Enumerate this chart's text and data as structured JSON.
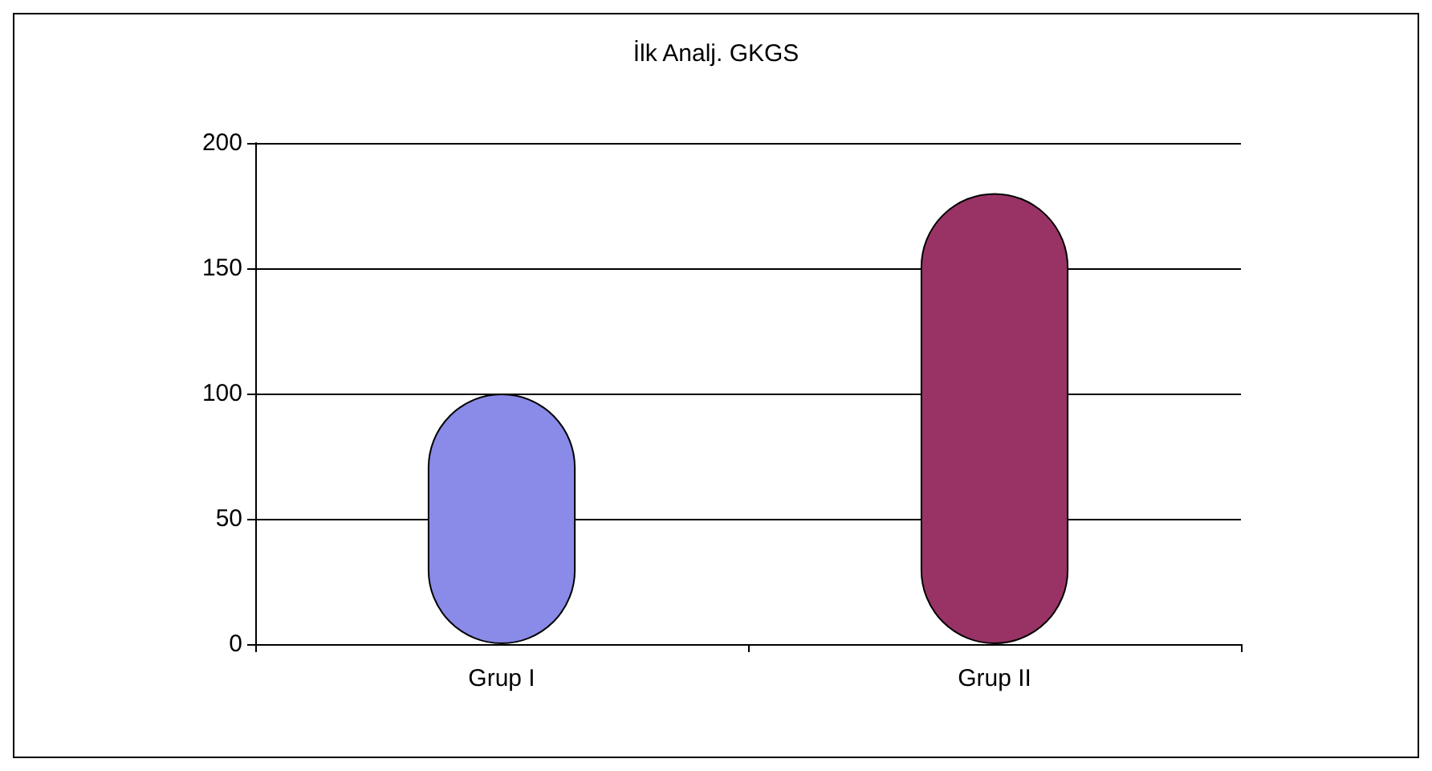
{
  "chart_data": {
    "type": "bar",
    "title": "İlk Analj. GKGS",
    "categories": [
      "Grup I",
      "Grup II"
    ],
    "values": [
      100,
      180
    ],
    "colors": [
      "#8a8ae8",
      "#993366"
    ],
    "ylim": [
      0,
      200
    ],
    "yticks": [
      0,
      50,
      100,
      150,
      200
    ],
    "grid": "y"
  }
}
